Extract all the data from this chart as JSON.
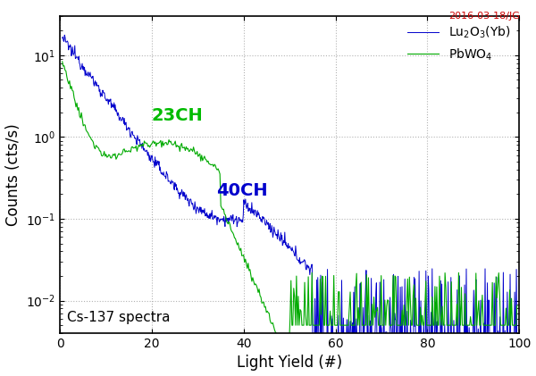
{
  "xlabel": "Light Yield (#)",
  "ylabel": "Counts (cts/s)",
  "xlim": [
    0,
    100
  ],
  "ylim_log": [
    0.004,
    30
  ],
  "background_color": "#ffffff",
  "grid_color": "#aaaaaa",
  "annotation_date": "2016-03-18/JG",
  "annotation_date_color": "#cc0000",
  "annotation_cs": "Cs-137 spectra",
  "annotation_23ch": "23CH",
  "annotation_23ch_color": "#00bb00",
  "annotation_40ch": "40CH",
  "annotation_40ch_color": "#0000cc",
  "legend_lu": "Lu$_2$O$_3$(Yb)",
  "legend_pbwo": "PbWO$_4$",
  "lu_color": "#0000cc",
  "pbwo_color": "#00aa00"
}
